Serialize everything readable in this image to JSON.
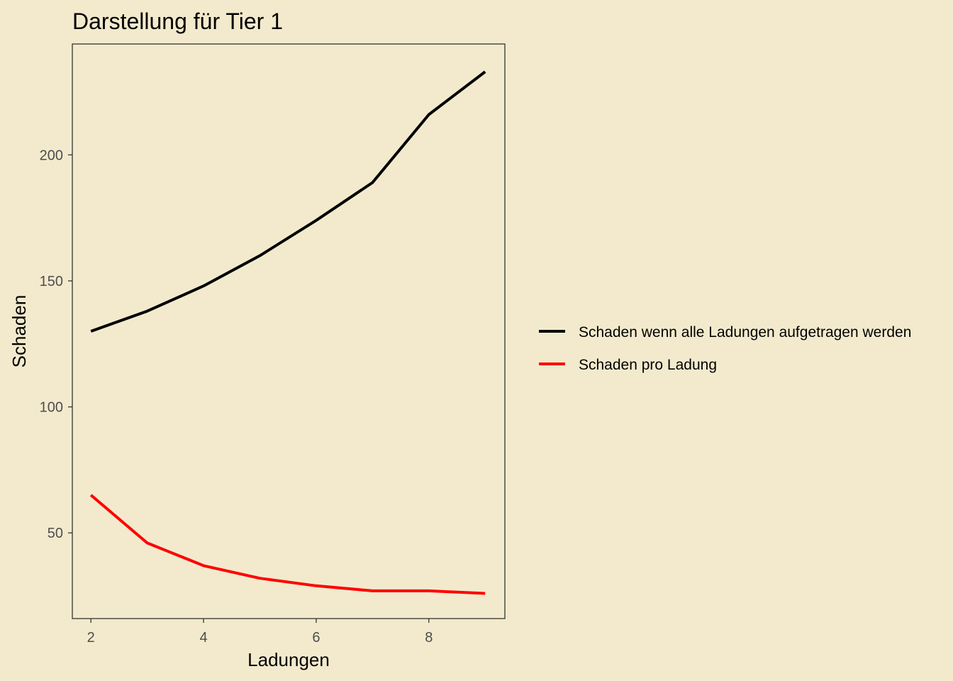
{
  "chart_data": {
    "type": "line",
    "title": "Darstellung für Tier 1",
    "xlabel": "Ladungen",
    "ylabel": "Schaden",
    "x": [
      2,
      3,
      4,
      5,
      6,
      7,
      8,
      9
    ],
    "xticks": [
      2,
      4,
      6,
      8
    ],
    "yticks": [
      50,
      100,
      150,
      200
    ],
    "xlim": [
      1.67,
      9.35
    ],
    "ylim": [
      16,
      244
    ],
    "grid": false,
    "legend_position": "right",
    "series": [
      {
        "name": "Schaden wenn alle Ladungen aufgetragen werden",
        "color": "#000000",
        "values": [
          130,
          138,
          148,
          160,
          174,
          189,
          216,
          233
        ]
      },
      {
        "name": "Schaden pro Ladung",
        "color": "#FF0000",
        "values": [
          65,
          46,
          37,
          32,
          29,
          27,
          27,
          26
        ]
      }
    ]
  },
  "background_color": "#F3EACD"
}
